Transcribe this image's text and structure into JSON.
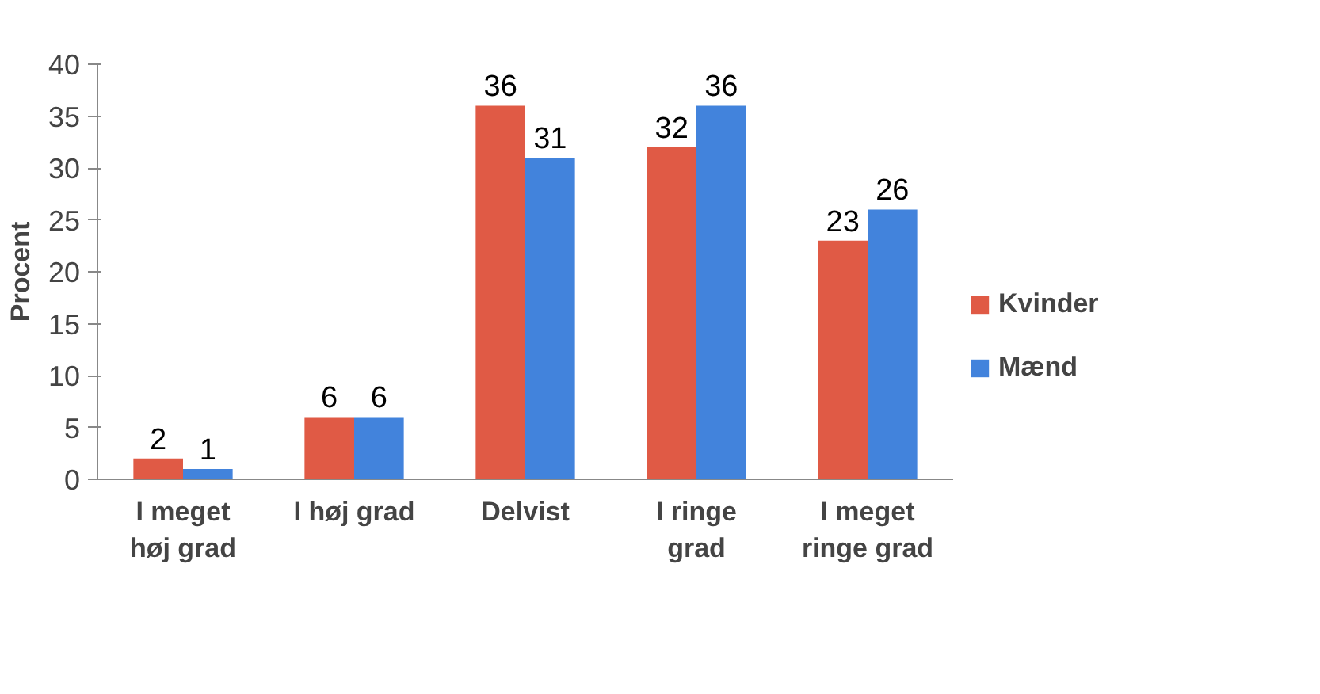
{
  "chart_data": {
    "type": "bar",
    "ylabel": "Procent",
    "categories": [
      "I meget høj grad",
      "I høj grad",
      "Delvist",
      "I ringe grad",
      "I meget ringe grad"
    ],
    "series": [
      {
        "name": "Kvinder",
        "color": "#e05a45",
        "values": [
          2,
          6,
          36,
          32,
          23
        ]
      },
      {
        "name": "Mænd",
        "color": "#4283dc",
        "values": [
          1,
          6,
          31,
          36,
          26
        ]
      }
    ],
    "ylim": [
      0,
      40
    ],
    "yticks": [
      0,
      5,
      10,
      15,
      20,
      25,
      30,
      35,
      40
    ],
    "grid": false,
    "legend": "right",
    "data_labels": true
  }
}
